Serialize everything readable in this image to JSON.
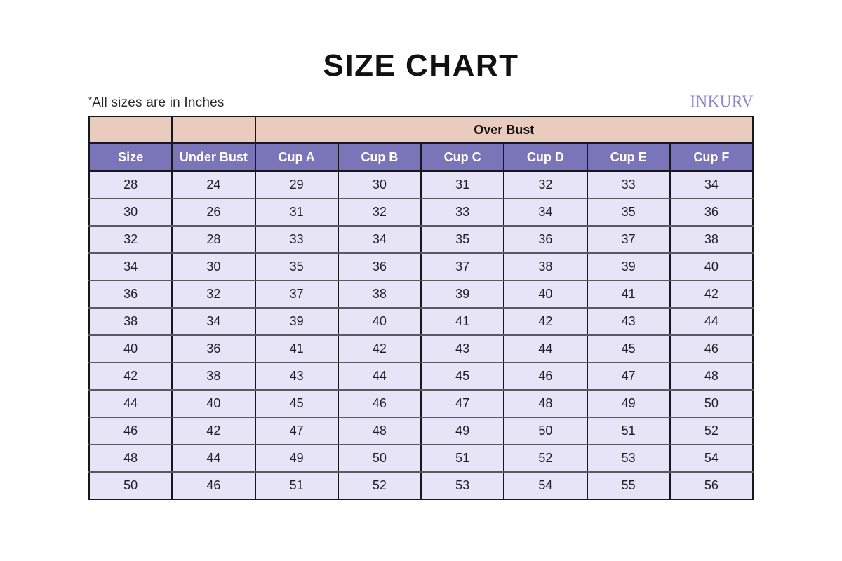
{
  "page": {
    "title": "SIZE CHART",
    "note_marker": "*",
    "note_text": "All sizes are in Inches",
    "brand": "INKURV"
  },
  "colors": {
    "header_beige": "#EACCBE",
    "header_purple": "#7A74B9",
    "row_lavender": "#E6E4F6",
    "brand_purple": "#8C85CB",
    "grid_dark": "#17171E",
    "row_divider_gray": "#5A5A64"
  },
  "chart_data": {
    "type": "table",
    "title": "SIZE CHART",
    "units_note": "*All sizes are in Inches",
    "group_header": {
      "label": "Over Bust",
      "spans": [
        "Cup A",
        "Cup B",
        "Cup C",
        "Cup D",
        "Cup E",
        "Cup F"
      ]
    },
    "columns": [
      "Size",
      "Under Bust",
      "Cup A",
      "Cup B",
      "Cup C",
      "Cup D",
      "Cup E",
      "Cup F"
    ],
    "rows": [
      [
        28,
        24,
        29,
        30,
        31,
        32,
        33,
        34
      ],
      [
        30,
        26,
        31,
        32,
        33,
        34,
        35,
        36
      ],
      [
        32,
        28,
        33,
        34,
        35,
        36,
        37,
        38
      ],
      [
        34,
        30,
        35,
        36,
        37,
        38,
        39,
        40
      ],
      [
        36,
        32,
        37,
        38,
        39,
        40,
        41,
        42
      ],
      [
        38,
        34,
        39,
        40,
        41,
        42,
        43,
        44
      ],
      [
        40,
        36,
        41,
        42,
        43,
        44,
        45,
        46
      ],
      [
        42,
        38,
        43,
        44,
        45,
        46,
        47,
        48
      ],
      [
        44,
        40,
        45,
        46,
        47,
        48,
        49,
        50
      ],
      [
        46,
        42,
        47,
        48,
        49,
        50,
        51,
        52
      ],
      [
        48,
        44,
        49,
        50,
        51,
        52,
        53,
        54
      ],
      [
        50,
        46,
        51,
        52,
        53,
        54,
        55,
        56
      ]
    ]
  }
}
